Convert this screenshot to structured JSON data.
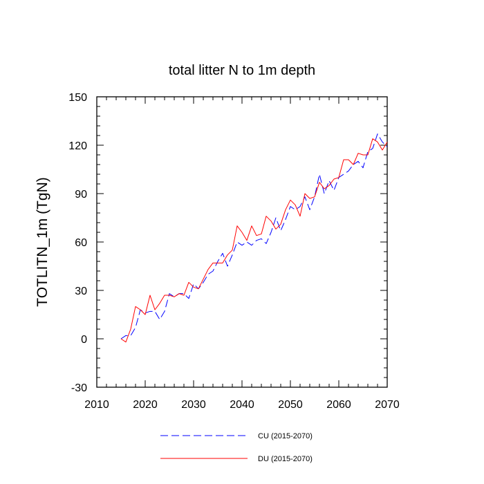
{
  "chart_data": {
    "type": "line",
    "title": "total litter N to 1m depth",
    "xlabel": "",
    "ylabel": "TOTLITN_1m  (TgN)",
    "xlim": [
      2010,
      2070
    ],
    "ylim": [
      -30,
      150
    ],
    "xticks": [
      2010,
      2020,
      2030,
      2040,
      2050,
      2060,
      2070
    ],
    "xtick_labels": [
      "2010",
      "2020",
      "2030",
      "2040",
      "2050",
      "2060",
      "2070"
    ],
    "yticks": [
      -30,
      0,
      30,
      60,
      90,
      120,
      150
    ],
    "ytick_labels": [
      "-30",
      "0",
      "30",
      "60",
      "90",
      "120",
      "150"
    ],
    "x": [
      2015,
      2016,
      2017,
      2018,
      2019,
      2020,
      2021,
      2022,
      2023,
      2024,
      2025,
      2026,
      2027,
      2028,
      2029,
      2030,
      2031,
      2032,
      2033,
      2034,
      2035,
      2036,
      2037,
      2038,
      2039,
      2040,
      2041,
      2042,
      2043,
      2044,
      2045,
      2046,
      2047,
      2048,
      2049,
      2050,
      2051,
      2052,
      2053,
      2054,
      2055,
      2056,
      2057,
      2058,
      2059,
      2060,
      2061,
      2062,
      2063,
      2064,
      2065,
      2066,
      2067,
      2068,
      2069,
      2070
    ],
    "series": [
      {
        "name": "CU (2015-2070)",
        "label": "CU (2015-2070)",
        "color": "#0000ff",
        "dash": "dashed",
        "values": [
          0,
          2,
          2,
          7,
          18,
          16,
          17,
          17,
          12,
          17,
          28,
          26,
          28,
          28,
          25,
          34,
          31,
          35,
          40,
          42,
          48,
          53,
          45,
          52,
          60,
          58,
          60,
          58,
          61,
          62,
          59,
          66,
          75,
          67,
          74,
          82,
          80,
          82,
          88,
          80,
          88,
          102,
          90,
          98,
          92,
          100,
          102,
          104,
          108,
          110,
          106,
          116,
          118,
          127,
          122,
          119
        ]
      },
      {
        "name": "DU (2015-2070)",
        "label": "DU (2015-2070)",
        "color": "#ff0000",
        "dash": "solid",
        "values": [
          0,
          -2,
          6,
          20,
          18,
          15,
          27,
          18,
          22,
          27,
          27,
          26,
          28,
          27,
          35,
          32,
          31,
          37,
          43,
          47,
          47,
          47,
          52,
          55,
          70,
          66,
          61,
          70,
          64,
          65,
          76,
          73,
          68,
          71,
          80,
          86,
          83,
          76,
          90,
          87,
          88,
          97,
          93,
          95,
          99,
          100,
          111,
          111,
          108,
          115,
          114,
          114,
          124,
          122,
          117,
          122
        ]
      }
    ],
    "legend_position": "bottom"
  }
}
